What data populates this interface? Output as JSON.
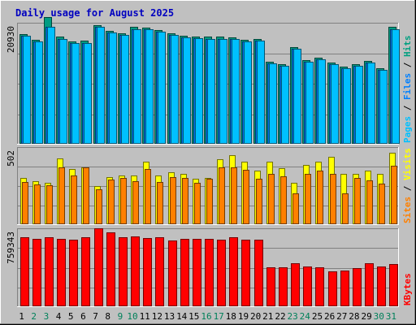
{
  "chart_data": {
    "type": "bar",
    "title": "Daily usage for August 2025",
    "categories": [
      "1",
      "2",
      "3",
      "4",
      "5",
      "6",
      "7",
      "8",
      "9",
      "10",
      "11",
      "12",
      "13",
      "14",
      "15",
      "16",
      "17",
      "18",
      "19",
      "20",
      "21",
      "22",
      "23",
      "24",
      "25",
      "26",
      "27",
      "28",
      "29",
      "30",
      "31"
    ],
    "weekend_days": [
      "2",
      "3",
      "9",
      "10",
      "16",
      "17",
      "23",
      "24",
      "30",
      "31"
    ],
    "panels": [
      {
        "name": "pages-files-hits",
        "ymax_label": "20930",
        "ymax": 20930,
        "ylabel_parts": [
          {
            "text": "Pages",
            "color": "#00c0ff"
          },
          {
            "text": " / ",
            "color": "#000000"
          },
          {
            "text": "Files",
            "color": "#0080ff"
          },
          {
            "text": " / ",
            "color": "#000000"
          },
          {
            "text": "Hits",
            "color": "#00a080"
          }
        ],
        "series": [
          {
            "name": "Hits",
            "color": "#009c82",
            "values": [
              19100,
              18100,
              22000,
              18600,
              17800,
              17900,
              20700,
              19700,
              19200,
              20300,
              20200,
              19800,
              19300,
              18800,
              18700,
              18600,
              18600,
              18500,
              18100,
              18300,
              14300,
              13900,
              16800,
              14600,
              15000,
              14100,
              13500,
              13900,
              14400,
              13200,
              20300
            ]
          },
          {
            "name": "Files",
            "color": "#0078f0",
            "values": [
              18800,
              17800,
              20400,
              18300,
              17500,
              17600,
              20300,
              19400,
              18900,
              20000,
              19900,
              19500,
              19000,
              18500,
              18400,
              18300,
              18300,
              18200,
              17800,
              18000,
              14000,
              13600,
              16500,
              14300,
              14700,
              13800,
              13200,
              13600,
              14100,
              12900,
              20000
            ]
          },
          {
            "name": "Pages",
            "color": "#00c0ff",
            "values": [
              18800,
              17800,
              20400,
              18300,
              17500,
              17600,
              20300,
              19400,
              18900,
              20000,
              19900,
              19500,
              19000,
              18500,
              18400,
              18300,
              18300,
              18200,
              17800,
              18000,
              14000,
              13600,
              16500,
              14300,
              14700,
              13800,
              13200,
              13600,
              14100,
              12900,
              20000
            ]
          }
        ]
      },
      {
        "name": "visits-sites",
        "ymax_label": "502",
        "ymax": 502,
        "ylabel_parts": [
          {
            "text": "Sites",
            "color": "#ff8000"
          },
          {
            "text": " / ",
            "color": "#000000"
          },
          {
            "text": "Visits",
            "color": "#ffff00"
          }
        ],
        "series": [
          {
            "name": "Visits",
            "color": "#ffff00",
            "values": [
              302,
              282,
              270,
              430,
              363,
              375,
              250,
              310,
              322,
              320,
              410,
              320,
              340,
              332,
              300,
              302,
              426,
              456,
              410,
              353,
              410,
              370,
              270,
              390,
              410,
              445,
              330,
              330,
              353,
              330,
              469
            ]
          },
          {
            "name": "Sites",
            "color": "#ff8000",
            "values": [
              280,
              262,
              258,
              372,
              320,
              375,
              232,
              294,
              306,
              283,
              364,
              279,
              310,
              302,
              271,
              299,
              374,
              372,
              359,
              300,
              330,
              315,
              202,
              330,
              354,
              330,
              205,
              302,
              290,
              266,
              383
            ]
          }
        ]
      },
      {
        "name": "kbytes",
        "ymax_label": "759343",
        "ymax": 759343,
        "ylabel_parts": [
          {
            "text": "KBytes",
            "color": "#ff0000"
          }
        ],
        "series": [
          {
            "name": "KBytes",
            "color": "#ff0000",
            "values": [
              677000,
              667000,
              677000,
              667000,
              657000,
              677000,
              767000,
              727000,
              682000,
              687000,
              672000,
              677000,
              647000,
              667000,
              667000,
              667000,
              657000,
              682000,
              657000,
              657000,
              384000,
              384000,
              424000,
              394000,
              384000,
              344000,
              354000,
              374000,
              424000,
              394000,
              414000
            ]
          }
        ]
      }
    ]
  }
}
